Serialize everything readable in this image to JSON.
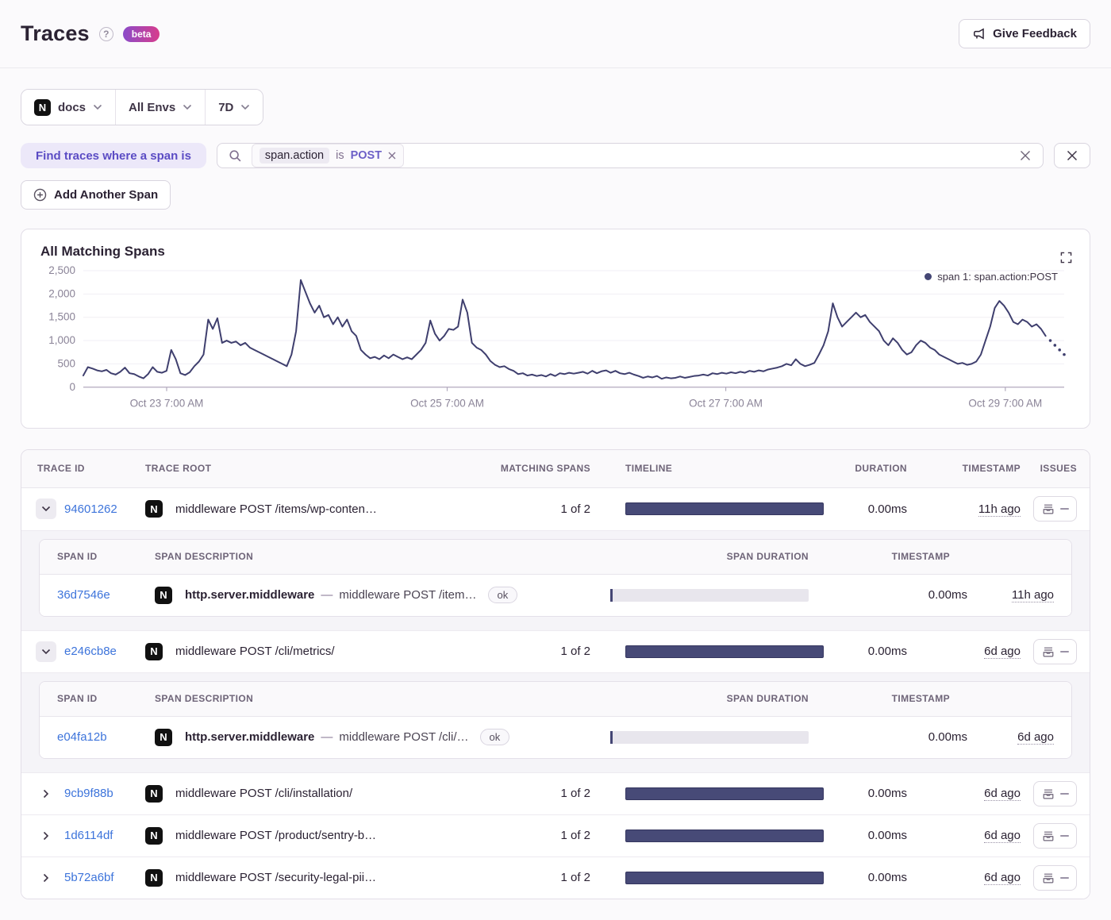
{
  "header": {
    "title": "Traces",
    "help_icon": "?",
    "beta_badge": "beta",
    "feedback_button": "Give Feedback"
  },
  "filters": {
    "project_label": "docs",
    "project_icon_letter": "N",
    "env_label": "All Envs",
    "period_label": "7D"
  },
  "span_filter": {
    "find_label": "Find traces where a span is",
    "token_key": "span.action",
    "token_op": "is",
    "token_value": "POST",
    "add_span_button": "Add Another Span"
  },
  "chart": {
    "title": "All Matching Spans",
    "legend_label": "span 1: span.action:POST"
  },
  "chart_data": {
    "type": "line",
    "title": "All Matching Spans",
    "series_name": "span 1: span.action:POST",
    "ylim": [
      0,
      2500
    ],
    "grid": "horizontal",
    "legend_position": "top-right",
    "line_color": "#3F3F6E",
    "y_ticks": [
      {
        "v": 0,
        "label": "0"
      },
      {
        "v": 500,
        "label": "500"
      },
      {
        "v": 1000,
        "label": "1,000"
      },
      {
        "v": 1500,
        "label": "1,500"
      },
      {
        "v": 2000,
        "label": "2,000"
      },
      {
        "v": 2500,
        "label": "2,500"
      }
    ],
    "x_ticks": [
      {
        "label": "Oct 23 7:00 AM",
        "f": 0.085
      },
      {
        "label": "Oct 25 7:00 AM",
        "f": 0.371
      },
      {
        "label": "Oct 27 7:00 AM",
        "f": 0.655
      },
      {
        "label": "Oct 29 7:00 AM",
        "f": 0.94
      }
    ],
    "dotted_tail": 4,
    "values": [
      250,
      430,
      400,
      360,
      340,
      370,
      300,
      270,
      330,
      420,
      300,
      280,
      230,
      190,
      280,
      430,
      330,
      310,
      350,
      800,
      600,
      300,
      260,
      320,
      450,
      550,
      700,
      1450,
      1250,
      1480,
      950,
      1000,
      950,
      980,
      900,
      950,
      850,
      800,
      750,
      700,
      650,
      600,
      550,
      500,
      450,
      700,
      1200,
      2300,
      2050,
      1800,
      1600,
      1750,
      1500,
      1550,
      1350,
      1500,
      1300,
      1450,
      1200,
      1100,
      800,
      700,
      620,
      650,
      600,
      680,
      620,
      700,
      650,
      600,
      640,
      600,
      700,
      800,
      950,
      1430,
      1150,
      1000,
      1100,
      1250,
      1230,
      1300,
      1880,
      1600,
      950,
      850,
      800,
      700,
      560,
      480,
      430,
      450,
      390,
      350,
      280,
      300,
      250,
      270,
      240,
      260,
      230,
      280,
      240,
      300,
      280,
      310,
      290,
      310,
      330,
      290,
      350,
      300,
      340,
      360,
      310,
      350,
      300,
      280,
      310,
      270,
      240,
      200,
      230,
      210,
      240,
      180,
      210,
      190,
      200,
      230,
      200,
      220,
      240,
      250,
      270,
      250,
      300,
      280,
      310,
      290,
      320,
      300,
      330,
      310,
      350,
      330,
      360,
      340,
      380,
      400,
      420,
      450,
      500,
      470,
      600,
      500,
      450,
      480,
      520,
      700,
      900,
      1200,
      1800,
      1500,
      1300,
      1400,
      1500,
      1600,
      1500,
      1550,
      1400,
      1300,
      1200,
      1000,
      900,
      1050,
      950,
      800,
      700,
      750,
      900,
      1000,
      950,
      850,
      800,
      700,
      650,
      600,
      550,
      500,
      520,
      480,
      500,
      550,
      700,
      1000,
      1300,
      1700,
      1850,
      1750,
      1600,
      1400,
      1350,
      1450,
      1400,
      1300,
      1350,
      1250,
      1100,
      1000,
      900,
      800,
      700
    ]
  },
  "table": {
    "columns": [
      "TRACE ID",
      "TRACE ROOT",
      "MATCHING SPANS",
      "TIMELINE",
      "DURATION",
      "TIMESTAMP",
      "ISSUES"
    ],
    "sub_columns": [
      "SPAN ID",
      "SPAN DESCRIPTION",
      "SPAN DURATION",
      "TIMESTAMP"
    ],
    "span_status_label": "ok",
    "rows": [
      {
        "trace_id": "94601262",
        "trace_root": "middleware POST /items/wp-conten…",
        "matching_spans": "1 of 2",
        "duration": "0.00ms",
        "timestamp": "11h ago",
        "expanded": true,
        "spans": [
          {
            "span_id": "36d7546e",
            "op": "http.server.middleware",
            "description": "middleware POST /item…",
            "status": "ok",
            "duration": "0.00ms",
            "timestamp": "11h ago"
          }
        ]
      },
      {
        "trace_id": "e246cb8e",
        "trace_root": "middleware POST /cli/metrics/",
        "matching_spans": "1 of 2",
        "duration": "0.00ms",
        "timestamp": "6d ago",
        "expanded": true,
        "spans": [
          {
            "span_id": "e04fa12b",
            "op": "http.server.middleware",
            "description": "middleware POST /cli/…",
            "status": "ok",
            "duration": "0.00ms",
            "timestamp": "6d ago"
          }
        ]
      },
      {
        "trace_id": "9cb9f88b",
        "trace_root": "middleware POST /cli/installation/",
        "matching_spans": "1 of 2",
        "duration": "0.00ms",
        "timestamp": "6d ago",
        "expanded": false,
        "spans": []
      },
      {
        "trace_id": "1d6114df",
        "trace_root": "middleware POST /product/sentry-b…",
        "matching_spans": "1 of 2",
        "duration": "0.00ms",
        "timestamp": "6d ago",
        "expanded": false,
        "spans": []
      },
      {
        "trace_id": "5b72a6bf",
        "trace_root": "middleware POST /security-legal-pii…",
        "matching_spans": "1 of 2",
        "duration": "0.00ms",
        "timestamp": "6d ago",
        "expanded": false,
        "spans": []
      }
    ]
  }
}
